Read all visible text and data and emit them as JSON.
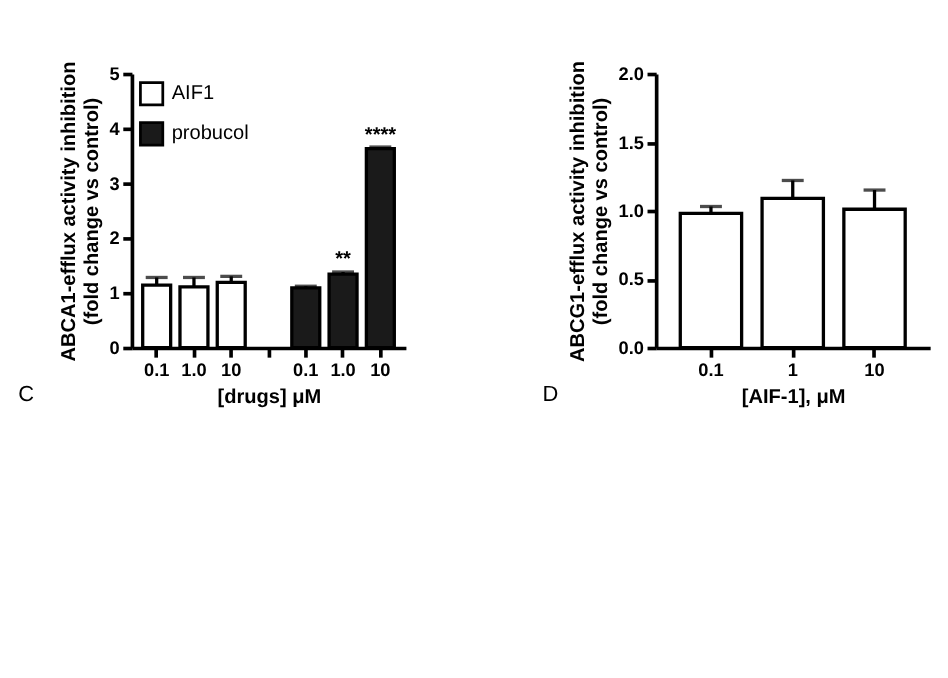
{
  "chart_data": [
    {
      "type": "bar",
      "categories": [
        "0.1",
        "1.0",
        "10",
        null,
        "0.1",
        "1.0",
        "10"
      ],
      "xlabel": "[drugs] μM",
      "ylabel": "ABCA1-efflux activity inhibition\n(fold change vs control)",
      "ylim": [
        0,
        5
      ],
      "yticks": [
        0,
        1,
        2,
        3,
        4,
        5
      ],
      "grid": false,
      "legend": "top left",
      "series": [
        {
          "name": "AIF1",
          "color": "#ffffff",
          "values": [
            1.14,
            1.11,
            1.19,
            null,
            null,
            null,
            null
          ],
          "errors": [
            [
              1.14,
              1.28
            ],
            [
              1.11,
              1.28
            ],
            [
              1.19,
              1.3
            ],
            null,
            null,
            null,
            null
          ]
        },
        {
          "name": "probucol",
          "color": "#1a1a1a",
          "values": [
            null,
            null,
            null,
            null,
            1.09,
            1.34,
            3.63
          ],
          "errors": [
            null,
            null,
            null,
            null,
            [
              1.09,
              1.12
            ],
            [
              1.34,
              1.38
            ],
            [
              3.63,
              3.66
            ]
          ]
        }
      ],
      "annotations": [
        "**",
        "****",
        "C"
      ]
    },
    {
      "type": "bar",
      "categories": [
        "0.1",
        "1",
        "10"
      ],
      "xlabel": "[AIF-1], μM",
      "ylabel": "ABCG1-efflux activity inhibition\n(fold change vs control)",
      "ylim": [
        0,
        2.0
      ],
      "yticks": [
        {
          "value": 0,
          "label": "0.0"
        },
        {
          "value": 0.5,
          "label": "0.5"
        },
        {
          "value": 1,
          "label": "1.0"
        },
        {
          "value": 1.5,
          "label": "1.5"
        },
        {
          "value": 2,
          "label": "2.0"
        }
      ],
      "grid": false,
      "series": [
        {
          "color": "#ffffff",
          "values": [
            0.98,
            1.09,
            1.01
          ],
          "errors": [
            [
              0.98,
              1.03
            ],
            [
              1.09,
              1.22
            ],
            [
              1.01,
              1.15
            ]
          ]
        }
      ],
      "annotations": [
        "D"
      ]
    }
  ]
}
